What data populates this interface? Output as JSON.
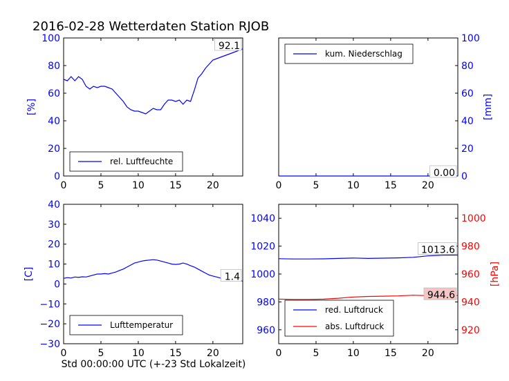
{
  "title": "2016-02-28 Wetterdaten Station RJOB",
  "xlabel": "Std 00:00:00 UTC (+-23 Std Lokalzeit)",
  "colors": {
    "blue": "#0000ff",
    "red": "#ff0000",
    "black": "#000000"
  },
  "chart_data": [
    {
      "type": "line",
      "ylabel": "[%]",
      "xlim": [
        0,
        24
      ],
      "ylim": [
        0,
        100
      ],
      "xticks": [
        0,
        5,
        10,
        15,
        20
      ],
      "yticks": [
        0,
        20,
        40,
        60,
        80,
        100
      ],
      "legend": {
        "position": "lower-left",
        "entries": [
          "rel. Luftfeuchte"
        ]
      },
      "last_value_label": "92.1",
      "series": [
        {
          "name": "rel. Luftfeuchte",
          "color": "#0000ff",
          "x": [
            0,
            0.5,
            1,
            1.5,
            2,
            2.5,
            3,
            3.5,
            4,
            4.5,
            5,
            5.5,
            6,
            6.5,
            7,
            7.5,
            8,
            8.5,
            9,
            9.5,
            10,
            10.5,
            11,
            11.5,
            12,
            12.5,
            13,
            13.5,
            14,
            14.5,
            15,
            15.5,
            16,
            16.5,
            17,
            17.5,
            18,
            18.5,
            19,
            19.5,
            20,
            20.5,
            21,
            21.5,
            22,
            22.5,
            23,
            23.5,
            24
          ],
          "values": [
            70,
            69,
            72,
            69,
            72,
            70,
            65,
            63,
            65,
            64,
            65,
            65,
            64,
            63,
            60,
            57,
            54,
            50,
            48,
            47,
            47,
            46,
            45,
            47,
            49,
            48,
            48,
            52,
            55,
            55,
            54,
            55,
            52,
            55,
            54,
            62,
            71,
            74,
            78,
            81,
            84,
            85,
            86,
            87,
            88,
            89,
            90,
            91,
            92.1
          ]
        }
      ]
    },
    {
      "type": "line",
      "ylabel": "[mm]",
      "xlim": [
        0,
        24
      ],
      "ylim": [
        0,
        100
      ],
      "xticks": [
        0,
        5,
        10,
        15,
        20
      ],
      "yticks": [
        0,
        20,
        40,
        60,
        80,
        100
      ],
      "legend": {
        "position": "upper-left",
        "entries": [
          "kum. Niederschlag"
        ]
      },
      "last_value_label": "0.00",
      "series": [
        {
          "name": "kum. Niederschlag",
          "color": "#0000ff",
          "x": [
            0,
            24
          ],
          "values": [
            0,
            0
          ]
        }
      ]
    },
    {
      "type": "line",
      "ylabel": "[C]",
      "xlim": [
        0,
        24
      ],
      "ylim": [
        -30,
        40
      ],
      "xticks": [
        0,
        5,
        10,
        15,
        20
      ],
      "yticks": [
        -30,
        -20,
        -10,
        0,
        10,
        20,
        30,
        40
      ],
      "legend": {
        "position": "lower-left",
        "entries": [
          "Lufttemperatur"
        ]
      },
      "last_value_label": "1.4",
      "series": [
        {
          "name": "Lufttemperatur",
          "color": "#0000ff",
          "x": [
            0,
            0.5,
            1,
            1.5,
            2,
            2.5,
            3,
            3.5,
            4,
            4.5,
            5,
            5.5,
            6,
            6.5,
            7,
            7.5,
            8,
            8.5,
            9,
            9.5,
            10,
            10.5,
            11,
            11.5,
            12,
            12.5,
            13,
            13.5,
            14,
            14.5,
            15,
            15.5,
            16,
            16.5,
            17,
            17.5,
            18,
            18.5,
            19,
            19.5,
            20,
            20.5,
            21,
            21.5,
            22,
            22.5,
            23,
            23.5,
            24
          ],
          "values": [
            2.8,
            3.2,
            3.0,
            3.5,
            3.3,
            3.6,
            3.5,
            4.0,
            4.5,
            5.0,
            5.0,
            5.2,
            5.0,
            5.5,
            6.0,
            6.8,
            7.5,
            8.5,
            9.5,
            10.5,
            11.0,
            11.5,
            11.8,
            12.0,
            12.2,
            12.0,
            11.5,
            11.0,
            10.5,
            10.0,
            9.8,
            10.0,
            10.5,
            10.0,
            9.2,
            8.5,
            7.5,
            6.5,
            5.5,
            4.5,
            4.0,
            3.5,
            3.0,
            2.8,
            2.5,
            2.2,
            2.0,
            1.8,
            1.4
          ]
        }
      ]
    },
    {
      "type": "line",
      "ylabel_left": "",
      "ylabel_right": "[hPa]",
      "xlim": [
        0,
        24
      ],
      "ylim_left": [
        950,
        1050
      ],
      "ylim_right": [
        910,
        1010
      ],
      "xticks": [
        0,
        5,
        10,
        15,
        20
      ],
      "yticks_left": [
        960,
        980,
        1000,
        1020,
        1040
      ],
      "yticks_right": [
        920,
        940,
        960,
        980,
        1000
      ],
      "legend": {
        "position": "lower-left",
        "entries": [
          "red. Luftdruck",
          "abs. Luftdruck"
        ]
      },
      "last_value_labels": [
        "1013.6",
        "944.6"
      ],
      "series": [
        {
          "name": "red. Luftdruck",
          "color": "#0000ff",
          "axis": "left",
          "x": [
            0,
            2,
            4,
            6,
            8,
            10,
            12,
            14,
            16,
            18,
            20,
            22,
            24
          ],
          "values": [
            1011.0,
            1010.8,
            1010.8,
            1010.9,
            1011.2,
            1011.5,
            1011.2,
            1011.4,
            1011.6,
            1012.0,
            1013.0,
            1013.5,
            1013.6
          ]
        },
        {
          "name": "abs. Luftdruck",
          "color": "#ff0000",
          "axis": "right",
          "x": [
            0,
            2,
            4,
            6,
            8,
            10,
            12,
            14,
            16,
            18,
            20,
            22,
            24
          ],
          "values": [
            942.0,
            941.8,
            941.8,
            942.0,
            942.6,
            943.5,
            943.9,
            944.1,
            944.3,
            944.8,
            944.5,
            944.6,
            944.6
          ]
        }
      ]
    }
  ]
}
